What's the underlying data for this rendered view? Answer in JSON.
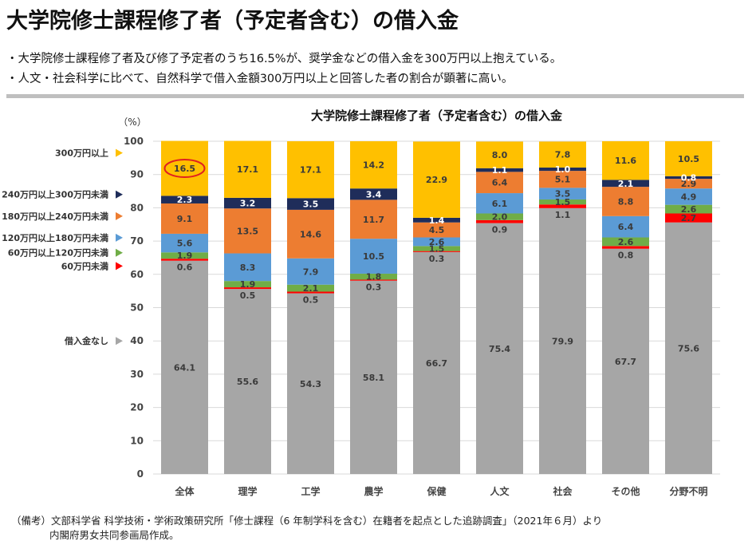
{
  "page": {
    "title": "大学院修士課程修了者（予定者含む）の借入金",
    "bullets": [
      "・大学院修士課程修了者及び修了予定者のうち16.5%が、奨学金などの借入金を300万円以上抱えている。",
      "・人文・社会科学に比べて、自然科学で借入金額300万円以上と回答した者の割合が顕著に高い。"
    ],
    "notes": [
      "（備考）文部科学省 科学技術・学術政策研究所「修士課程（6 年制学科を含む）在籍者を起点とした追跡調査」（2021年６月）より",
      "内閣府男女共同参画局作成。"
    ]
  },
  "chart_data": {
    "type": "bar",
    "stacked": true,
    "title": "大学院修士課程修了者（予定者含む）の借入金",
    "ylabel": "（%）",
    "ylim": [
      0,
      100
    ],
    "yticks": [
      0,
      10,
      20,
      30,
      40,
      50,
      60,
      70,
      80,
      90,
      100
    ],
    "grid": true,
    "legend_position": "left",
    "categories": [
      "全体",
      "理学",
      "工学",
      "農学",
      "保健",
      "人文",
      "社会",
      "その他",
      "分野不明"
    ],
    "series": [
      {
        "name": "借入金なし",
        "color": "#a6a6a6",
        "values": [
          64.1,
          55.6,
          54.3,
          58.1,
          66.7,
          75.4,
          79.9,
          67.7,
          75.6
        ]
      },
      {
        "name": "60万円未満",
        "color": "#ff0000",
        "values": [
          0.6,
          0.5,
          0.5,
          0.3,
          0.3,
          0.9,
          1.1,
          0.8,
          2.7
        ]
      },
      {
        "name": "60万円以上120万円未満",
        "color": "#70ad47",
        "values": [
          1.9,
          1.9,
          2.1,
          1.8,
          1.5,
          2.0,
          1.5,
          2.6,
          2.6
        ]
      },
      {
        "name": "120万円以上180万円未満",
        "color": "#5b9bd5",
        "values": [
          5.6,
          8.3,
          7.9,
          10.5,
          2.6,
          6.1,
          3.5,
          6.4,
          4.9
        ]
      },
      {
        "name": "180万円以上240万円未満",
        "color": "#ed7d31",
        "values": [
          9.1,
          13.5,
          14.6,
          11.7,
          4.5,
          6.4,
          5.1,
          8.8,
          2.9
        ]
      },
      {
        "name": "240万円以上300万円未満",
        "color": "#1f2d5a",
        "values": [
          2.3,
          3.2,
          3.5,
          3.4,
          1.4,
          1.1,
          1.0,
          2.1,
          0.8
        ]
      },
      {
        "name": "300万円以上",
        "color": "#ffc000",
        "values": [
          16.5,
          17.1,
          17.1,
          14.2,
          22.9,
          8.0,
          7.8,
          11.6,
          10.5
        ]
      }
    ],
    "annotation": {
      "type": "circle",
      "category": "全体",
      "series": "300万円以上",
      "color": "#e02020"
    }
  }
}
